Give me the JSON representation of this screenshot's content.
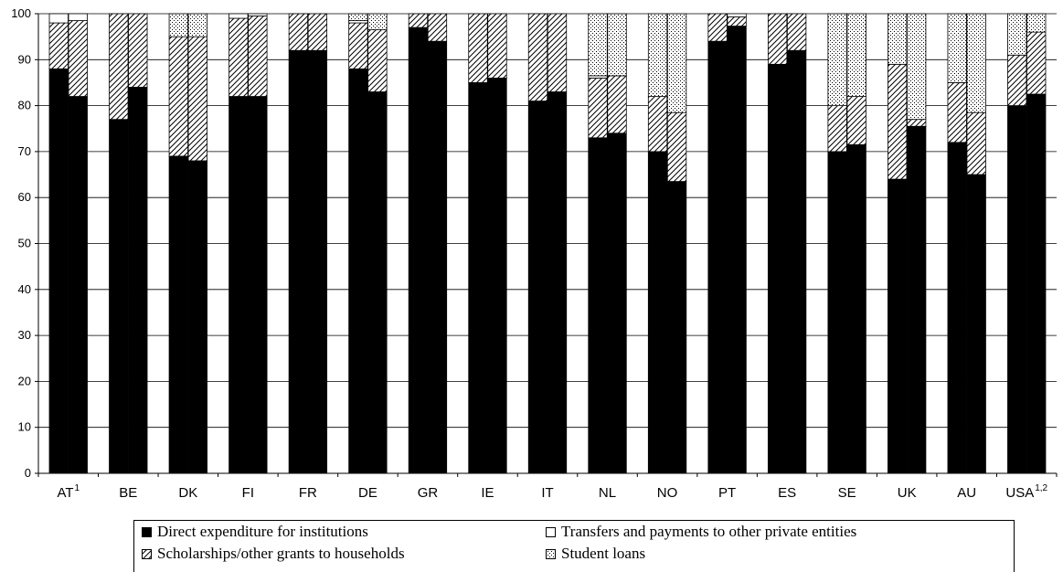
{
  "chart_data": {
    "type": "bar",
    "stacked": true,
    "bars_per_category": 2,
    "categories": [
      {
        "label": "AT",
        "sup": "1"
      },
      {
        "label": "BE",
        "sup": ""
      },
      {
        "label": "DK",
        "sup": ""
      },
      {
        "label": "FI",
        "sup": ""
      },
      {
        "label": "FR",
        "sup": ""
      },
      {
        "label": "DE",
        "sup": ""
      },
      {
        "label": "GR",
        "sup": ""
      },
      {
        "label": "IE",
        "sup": ""
      },
      {
        "label": "IT",
        "sup": ""
      },
      {
        "label": "NL",
        "sup": ""
      },
      {
        "label": "NO",
        "sup": ""
      },
      {
        "label": "PT",
        "sup": ""
      },
      {
        "label": "ES",
        "sup": ""
      },
      {
        "label": "SE",
        "sup": ""
      },
      {
        "label": "UK",
        "sup": ""
      },
      {
        "label": "AU",
        "sup": ""
      },
      {
        "label": "USA",
        "sup": "1,2"
      }
    ],
    "series": [
      {
        "name": "Direct expenditure for institutions",
        "pattern": "solid-black",
        "values": [
          [
            88,
            82
          ],
          [
            77,
            84
          ],
          [
            69,
            68
          ],
          [
            82,
            82
          ],
          [
            92,
            92
          ],
          [
            88,
            83
          ],
          [
            97,
            94
          ],
          [
            85,
            86
          ],
          [
            81,
            83
          ],
          [
            73,
            74
          ],
          [
            70,
            63.5
          ],
          [
            94,
            97.3
          ],
          [
            89,
            92
          ],
          [
            70,
            71.5
          ],
          [
            64,
            75.5
          ],
          [
            72,
            65
          ],
          [
            80,
            82.5
          ]
        ]
      },
      {
        "name": "Scholarships/other grants to households",
        "pattern": "diagonal-hatch",
        "values": [
          [
            10,
            16.5
          ],
          [
            23,
            16
          ],
          [
            26,
            27
          ],
          [
            17,
            17.5
          ],
          [
            8,
            8
          ],
          [
            10,
            13.5
          ],
          [
            3,
            6
          ],
          [
            15,
            14
          ],
          [
            19,
            17
          ],
          [
            13,
            12.5
          ],
          [
            12,
            15
          ],
          [
            6,
            2
          ],
          [
            11,
            8
          ],
          [
            10,
            10.5
          ],
          [
            25,
            1.5
          ],
          [
            13,
            13.5
          ],
          [
            11,
            13.5
          ]
        ]
      },
      {
        "name": "Transfers and payments to other private entities",
        "pattern": "white",
        "values": [
          [
            2,
            1.5
          ],
          [
            0,
            0
          ],
          [
            0,
            0
          ],
          [
            1,
            0.5
          ],
          [
            0,
            0
          ],
          [
            0.5,
            0
          ],
          [
            0,
            0
          ],
          [
            0,
            0
          ],
          [
            0,
            0
          ],
          [
            0.5,
            0
          ],
          [
            0,
            0
          ],
          [
            0,
            0.7
          ],
          [
            0,
            0
          ],
          [
            0,
            0
          ],
          [
            0,
            0
          ],
          [
            0,
            0
          ],
          [
            0,
            0
          ]
        ]
      },
      {
        "name": "Student loans",
        "pattern": "dotted",
        "values": [
          [
            0,
            0
          ],
          [
            0,
            0
          ],
          [
            5,
            5
          ],
          [
            0,
            0
          ],
          [
            0,
            0
          ],
          [
            1.5,
            3.5
          ],
          [
            0,
            0
          ],
          [
            0,
            0
          ],
          [
            0,
            0
          ],
          [
            13.5,
            13.5
          ],
          [
            18,
            21.5
          ],
          [
            0,
            0
          ],
          [
            0,
            0
          ],
          [
            20,
            18
          ],
          [
            11,
            23
          ],
          [
            15,
            21.5
          ],
          [
            9,
            4
          ]
        ]
      }
    ],
    "ylim": [
      0,
      100
    ],
    "yticks": [
      0,
      10,
      20,
      30,
      40,
      50,
      60,
      70,
      80,
      90,
      100
    ],
    "grid": true,
    "legend_position": "bottom",
    "title": "",
    "xlabel": "",
    "ylabel": ""
  },
  "legend": {
    "items": [
      {
        "label": "Direct expenditure for institutions",
        "swatch": "solid-black"
      },
      {
        "label": "Transfers and payments to other private entities",
        "swatch": "white"
      },
      {
        "label": "Scholarships/other grants to households",
        "swatch": "diagonal-hatch"
      },
      {
        "label": "Student loans",
        "swatch": "dotted"
      }
    ]
  },
  "colors": {
    "bar_fill": "#000000",
    "background": "#ffffff",
    "grid": "#000000"
  }
}
